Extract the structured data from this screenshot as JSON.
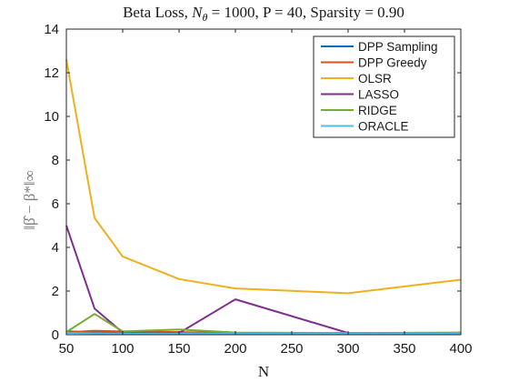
{
  "chart_data": {
    "type": "line",
    "title": "Beta Loss, N_θ = 1000, P = 40, Sparsity = 0.90",
    "xlabel": "N",
    "ylabel": "‖β̂ − β*‖∞",
    "xlim": [
      50,
      400
    ],
    "ylim": [
      0,
      14
    ],
    "xticks": [
      50,
      100,
      150,
      200,
      250,
      300,
      350,
      400
    ],
    "yticks": [
      0,
      2,
      4,
      6,
      8,
      10,
      12,
      14
    ],
    "grid": false,
    "legend_position": "top-right",
    "x": [
      50,
      75,
      100,
      150,
      200,
      300,
      400
    ],
    "series": [
      {
        "name": "DPP Sampling",
        "color": "#0072BD",
        "values": [
          0.15,
          0.12,
          0.1,
          0.08,
          0.06,
          0.06,
          0.05
        ]
      },
      {
        "name": "DPP Greedy",
        "color": "#D95319",
        "values": [
          0.1,
          0.18,
          0.15,
          0.12,
          0.08,
          0.07,
          0.07
        ]
      },
      {
        "name": "OLSR",
        "color": "#EDB120",
        "values": [
          12.6,
          5.35,
          3.58,
          2.55,
          2.12,
          1.9,
          2.52
        ]
      },
      {
        "name": "LASSO",
        "color": "#7E2F8E",
        "values": [
          5.0,
          1.2,
          0.1,
          0.08,
          1.62,
          0.08,
          0.08
        ]
      },
      {
        "name": "RIDGE",
        "color": "#77AC30",
        "values": [
          0.12,
          0.95,
          0.15,
          0.24,
          0.1,
          0.08,
          0.1
        ]
      },
      {
        "name": "ORACLE",
        "color": "#4DBEEE",
        "values": [
          0.08,
          0.06,
          0.05,
          0.05,
          0.04,
          0.04,
          0.04
        ]
      }
    ]
  }
}
